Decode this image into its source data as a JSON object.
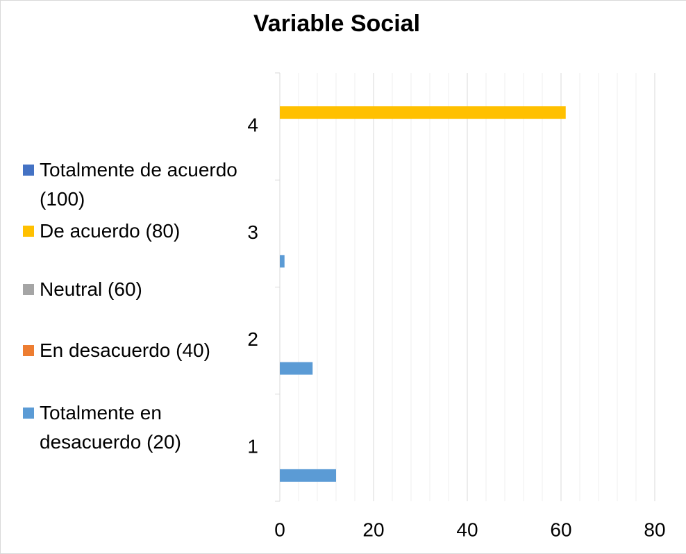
{
  "chart_data": {
    "type": "bar",
    "orientation": "horizontal",
    "title": "Variable Social",
    "categories": [
      "1",
      "2",
      "3",
      "4"
    ],
    "series": [
      {
        "name": "Totalmente de acuerdo (100)",
        "color": "#4472c4",
        "values": [
          null,
          null,
          null,
          null
        ]
      },
      {
        "name": "De acuerdo (80)",
        "color": "#ffc000",
        "values": [
          null,
          null,
          null,
          61
        ]
      },
      {
        "name": "Neutral (60)",
        "color": "#a5a5a5",
        "values": [
          null,
          null,
          null,
          null
        ]
      },
      {
        "name": "En desacuerdo (40)",
        "color": "#ed7d31",
        "values": [
          null,
          null,
          null,
          null
        ]
      },
      {
        "name": "Totalmente en desacuerdo (20)",
        "color": "#5b9bd5",
        "values": [
          12,
          7,
          1,
          null
        ]
      }
    ],
    "xlim": [
      0,
      80
    ],
    "xticks": [
      0,
      20,
      40,
      60,
      80
    ],
    "x_minor_ticks": [
      4,
      8,
      12,
      16,
      24,
      28,
      32,
      36,
      44,
      48,
      52,
      56,
      64,
      68,
      72,
      76
    ],
    "grid": true,
    "legend": "left"
  }
}
